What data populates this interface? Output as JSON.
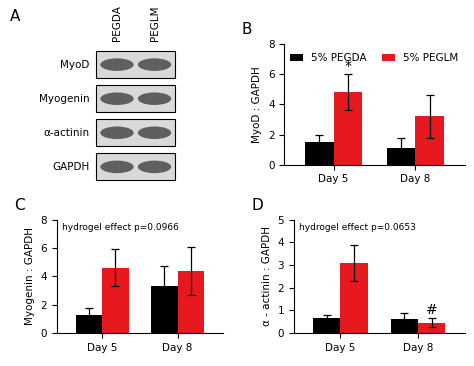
{
  "blot": {
    "panel_label": "A",
    "columns": [
      "PEGDA",
      "PEGLM"
    ],
    "rows": [
      "MyoD",
      "Myogenin",
      "α-actinin",
      "GAPDH"
    ]
  },
  "chart_data": [
    {
      "type": "bar",
      "panel_label": "B",
      "ylabel": "MyoD : GAPDH",
      "categories": [
        "Day 5",
        "Day 8"
      ],
      "series": [
        {
          "name": "5% PEGDA",
          "color": "#000000",
          "values": [
            1.5,
            1.1
          ],
          "error": [
            0.45,
            0.7
          ]
        },
        {
          "name": "5% PEGLM",
          "color": "#e8191e",
          "values": [
            4.8,
            3.2
          ],
          "error": [
            1.2,
            1.4
          ]
        }
      ],
      "ylim": [
        0,
        8
      ],
      "yticks": [
        0,
        2,
        4,
        6,
        8
      ],
      "legend": "upper center",
      "annotations": [
        {
          "text": "*",
          "category": "Day 5",
          "series_index": 1
        }
      ]
    },
    {
      "type": "bar",
      "panel_label": "C",
      "ylabel": "Myogenin : GAPDH",
      "note": "hydrogel effect p=0.0966",
      "categories": [
        "Day 5",
        "Day 8"
      ],
      "series": [
        {
          "color": "#000000",
          "values": [
            1.3,
            3.3
          ],
          "error": [
            0.45,
            1.45
          ]
        },
        {
          "color": "#e8191e",
          "values": [
            4.6,
            4.35
          ],
          "error": [
            1.3,
            1.7
          ]
        }
      ],
      "ylim": [
        0,
        8
      ],
      "yticks": [
        0,
        2,
        4,
        6,
        8
      ]
    },
    {
      "type": "bar",
      "panel_label": "D",
      "ylabel": "α - actinin : GAPDH",
      "note": "hydrogel effect p=0.0653",
      "categories": [
        "Day 5",
        "Day 8"
      ],
      "series": [
        {
          "color": "#000000",
          "values": [
            0.65,
            0.6
          ],
          "error": [
            0.15,
            0.3
          ]
        },
        {
          "color": "#e8191e",
          "values": [
            3.1,
            0.45
          ],
          "error": [
            0.8,
            0.2
          ]
        }
      ],
      "ylim": [
        0,
        5
      ],
      "yticks": [
        0,
        1,
        2,
        3,
        4,
        5
      ],
      "annotations": [
        {
          "text": "#",
          "category": "Day 8",
          "series_index": 1
        }
      ]
    }
  ]
}
